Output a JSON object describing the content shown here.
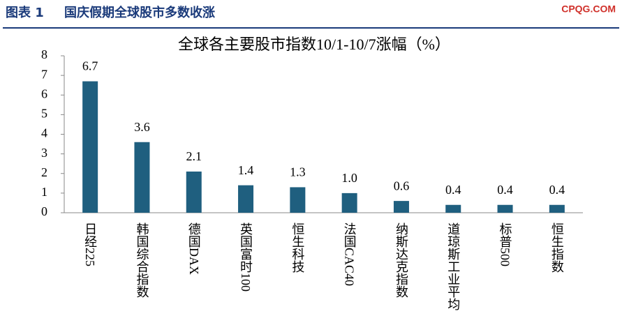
{
  "header": {
    "label": "图表 1",
    "title": "国庆假期全球股市多数收涨",
    "site": "CPQG.COM"
  },
  "chart_data": {
    "type": "bar",
    "title": "全球各主要股市指数10/1-10/7涨幅（%）",
    "categories": [
      "日经225",
      "韩国综合指数",
      "德国DAX",
      "英国富时100",
      "恒生科技",
      "法国CAC40",
      "纳斯达克指数",
      "道琼斯工业平均",
      "标普500",
      "恒生指数"
    ],
    "values": [
      6.7,
      3.6,
      2.1,
      1.4,
      1.3,
      1.0,
      0.6,
      0.4,
      0.4,
      0.4
    ],
    "value_labels": [
      "6.7",
      "3.6",
      "2.1",
      "1.4",
      "1.3",
      "1.0",
      "0.6",
      "0.4",
      "0.4",
      "0.4"
    ],
    "color": "#1f5f7f",
    "ylim": [
      0,
      8
    ],
    "yticks": [
      0,
      1,
      2,
      3,
      4,
      5,
      6,
      7,
      8
    ],
    "grid": false
  }
}
